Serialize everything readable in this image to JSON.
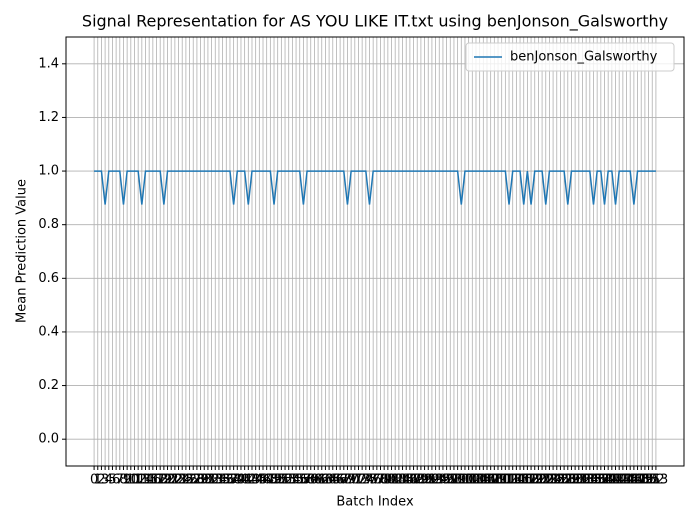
{
  "chart_data": {
    "type": "line",
    "title": "Signal Representation for AS YOU LIKE IT.txt using benJonson_Galsworthy",
    "x_label": "Batch Index",
    "y_label": "Mean Prediction Value",
    "x": [
      0,
      1,
      2,
      3,
      4,
      5,
      6,
      7,
      8,
      9,
      10,
      11,
      12,
      13,
      14,
      15,
      16,
      17,
      18,
      19,
      20,
      21,
      22,
      23,
      24,
      25,
      26,
      27,
      28,
      29,
      30,
      31,
      32,
      33,
      34,
      35,
      36,
      37,
      38,
      39,
      40,
      41,
      42,
      43,
      44,
      45,
      46,
      47,
      48,
      49,
      50,
      51,
      52,
      53,
      54,
      55,
      56,
      57,
      58,
      59,
      60,
      61,
      62,
      63,
      64,
      65,
      66,
      67,
      68,
      69,
      70,
      71,
      72,
      73,
      74,
      75,
      76,
      77,
      78,
      79,
      80,
      81,
      82,
      83,
      84,
      85,
      86,
      87,
      88,
      89,
      90,
      91,
      92,
      93,
      94,
      95,
      96,
      97,
      98,
      99,
      100,
      101,
      102,
      103,
      104,
      105,
      106,
      107,
      108,
      109,
      110,
      111,
      112,
      113,
      114,
      115,
      116,
      117,
      118,
      119,
      120,
      121,
      122,
      123,
      124,
      125,
      126,
      127,
      128,
      129,
      130,
      131,
      132,
      133,
      134,
      135,
      136,
      137,
      138,
      139,
      140,
      141,
      142,
      143,
      144,
      145,
      146,
      147,
      148,
      149,
      150,
      151,
      152,
      153
    ],
    "series": [
      {
        "name": "benJonson_Galsworthy",
        "color": "#1f77b4",
        "values": [
          1,
          1,
          1,
          0.875,
          1,
          1,
          1,
          1,
          0.875,
          1,
          1,
          1,
          1,
          0.875,
          1,
          1,
          1,
          1,
          1,
          0.875,
          1,
          1,
          1,
          1,
          1,
          1,
          1,
          1,
          1,
          1,
          1,
          1,
          1,
          1,
          1,
          1,
          1,
          1,
          0.875,
          1,
          1,
          1,
          0.875,
          1,
          1,
          1,
          1,
          1,
          1,
          0.875,
          1,
          1,
          1,
          1,
          1,
          1,
          1,
          0.875,
          1,
          1,
          1,
          1,
          1,
          1,
          1,
          1,
          1,
          1,
          1,
          0.875,
          1,
          1,
          1,
          1,
          1,
          0.875,
          1,
          1,
          1,
          1,
          1,
          1,
          1,
          1,
          1,
          1,
          1,
          1,
          1,
          1,
          1,
          1,
          1,
          1,
          1,
          1,
          1,
          1,
          1,
          1,
          0.875,
          1,
          1,
          1,
          1,
          1,
          1,
          1,
          1,
          1,
          1,
          1,
          1,
          0.875,
          1,
          1,
          1,
          0.875,
          1,
          0.875,
          1,
          1,
          1,
          0.875,
          1,
          1,
          1,
          1,
          1,
          0.875,
          1,
          1,
          1,
          1,
          1,
          1,
          0.875,
          1,
          1,
          0.875,
          1,
          1,
          0.875,
          1,
          1,
          1,
          1,
          0.875,
          1,
          1,
          1,
          1,
          1,
          1
        ]
      }
    ],
    "xlim": [
      -7.65,
      160.65
    ],
    "xticks": [
      0,
      1,
      2,
      3,
      4,
      5,
      6,
      7,
      8,
      9,
      10,
      11,
      12,
      13,
      14,
      15,
      16,
      17,
      18,
      19,
      20,
      21,
      22,
      23,
      24,
      25,
      26,
      27,
      28,
      29,
      30,
      31,
      32,
      33,
      34,
      35,
      36,
      37,
      38,
      39,
      40,
      41,
      42,
      43,
      44,
      45,
      46,
      47,
      48,
      49,
      50,
      51,
      52,
      53,
      54,
      55,
      56,
      57,
      58,
      59,
      60,
      61,
      62,
      63,
      64,
      65,
      66,
      67,
      68,
      69,
      70,
      71,
      72,
      73,
      74,
      75,
      76,
      77,
      78,
      79,
      80,
      81,
      82,
      83,
      84,
      85,
      86,
      87,
      88,
      89,
      90,
      91,
      92,
      93,
      94,
      95,
      96,
      97,
      98,
      99,
      100,
      101,
      102,
      103,
      104,
      105,
      106,
      107,
      108,
      109,
      110,
      111,
      112,
      113,
      114,
      115,
      116,
      117,
      118,
      119,
      120,
      121,
      122,
      123,
      124,
      125,
      126,
      127,
      128,
      129,
      130,
      131,
      132,
      133,
      134,
      135,
      136,
      137,
      138,
      139,
      140,
      141,
      142,
      143,
      144,
      145,
      146,
      147,
      148,
      149,
      150,
      151,
      152,
      153
    ],
    "ylim": [
      -0.1,
      1.5
    ],
    "yticks": [
      {
        "value": 0,
        "label": "0.0"
      },
      0.2,
      0.4,
      0.6,
      0.8,
      {
        "value": 1,
        "label": "1.0"
      },
      1.2,
      1.4
    ],
    "grid": true,
    "legend": "upper right"
  }
}
